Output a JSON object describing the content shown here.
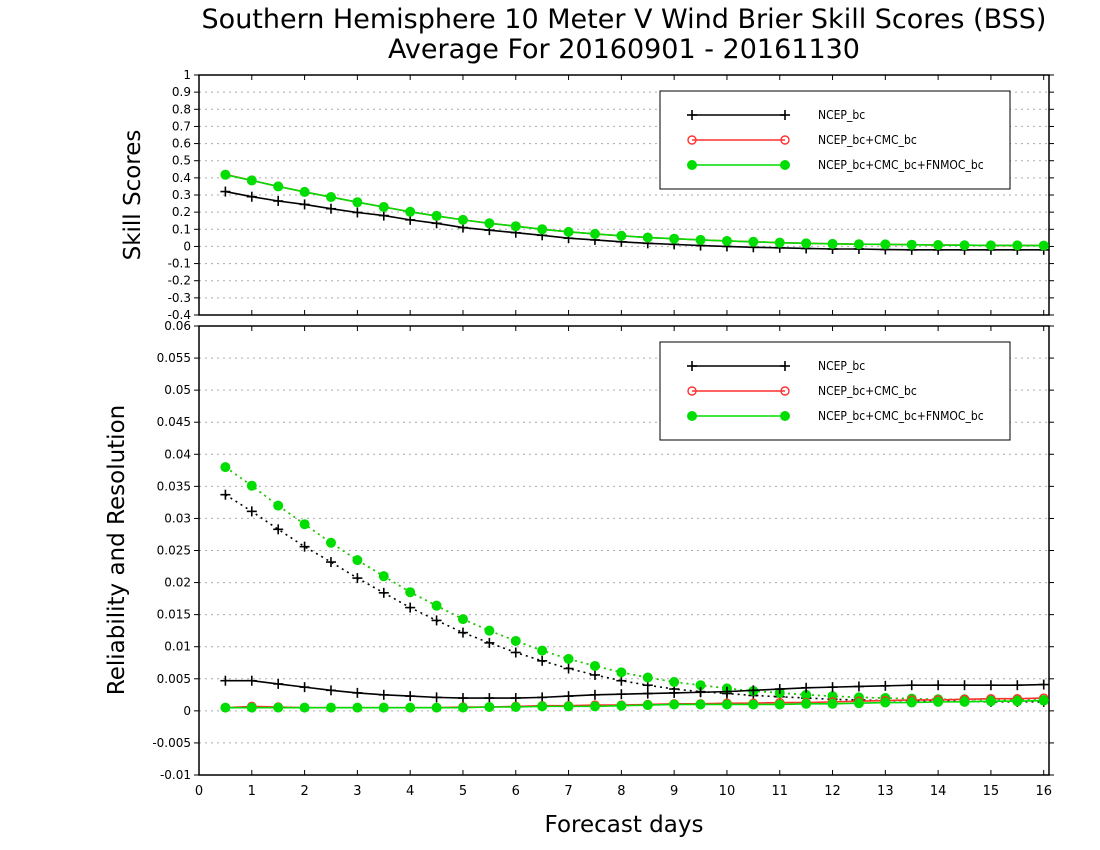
{
  "chart_data": {
    "title": "Southern Hemisphere 10 Meter V Wind Brier Skill Scores (BSS)",
    "subtitle": "Average For 20160901 - 20161130",
    "xlabel": "Forecast days",
    "x": [
      0.5,
      1,
      1.5,
      2,
      2.5,
      3,
      3.5,
      4,
      4.5,
      5,
      5.5,
      6,
      6.5,
      7,
      7.5,
      8,
      8.5,
      9,
      9.5,
      10,
      10.5,
      11,
      11.5,
      12,
      12.5,
      13,
      13.5,
      14,
      14.5,
      15,
      15.5,
      16
    ],
    "xlim": [
      0,
      16.1
    ],
    "xticks": [
      "0",
      "1",
      "2",
      "3",
      "4",
      "5",
      "6",
      "7",
      "8",
      "9",
      "10",
      "11",
      "12",
      "13",
      "14",
      "15",
      "16"
    ],
    "colors": {
      "NCEP_bc": "#000000",
      "NCEP_bc+CMC_bc": "#ff3030",
      "NCEP_bc+CMC_bc+FNMOC_bc": "#00dd00"
    },
    "panels": [
      {
        "type": "line",
        "ylabel": "Skill Scores",
        "ylim": [
          -0.4,
          1
        ],
        "yticks": [
          "-0.4",
          "-0.3",
          "-0.2",
          "-0.1",
          "0",
          "0.1",
          "0.2",
          "0.3",
          "0.4",
          "0.5",
          "0.6",
          "0.7",
          "0.8",
          "0.9",
          "1"
        ],
        "grid": true,
        "legend_position": "top-right",
        "legend": [
          {
            "name": "NCEP_bc",
            "marker": "plus"
          },
          {
            "name": "NCEP_bc+CMC_bc",
            "marker": "open-circle"
          },
          {
            "name": "NCEP_bc+CMC_bc+FNMOC_bc",
            "marker": "filled-circle"
          }
        ],
        "series": [
          {
            "name": "NCEP_bc",
            "marker": "plus",
            "dash": "solid",
            "values": [
              0.32,
              0.29,
              0.265,
              0.245,
              0.22,
              0.198,
              0.18,
              0.155,
              0.135,
              0.11,
              0.095,
              0.08,
              0.065,
              0.048,
              0.038,
              0.027,
              0.018,
              0.012,
              0.005,
              0.0,
              -0.005,
              -0.008,
              -0.012,
              -0.015,
              -0.015,
              -0.018,
              -0.02,
              -0.02,
              -0.02,
              -0.02,
              -0.02,
              -0.02
            ]
          },
          {
            "name": "NCEP_bc+CMC_bc",
            "marker": "open-circle",
            "dash": "solid",
            "values": [
              0.42,
              0.385,
              0.35,
              0.318,
              0.288,
              0.258,
              0.23,
              0.202,
              0.178,
              0.155,
              0.135,
              0.118,
              0.1,
              0.085,
              0.073,
              0.062,
              0.052,
              0.045,
              0.038,
              0.032,
              0.027,
              0.022,
              0.018,
              0.015,
              0.013,
              0.012,
              0.01,
              0.008,
              0.007,
              0.006,
              0.006,
              0.005
            ]
          },
          {
            "name": "NCEP_bc+CMC_bc+FNMOC_bc",
            "marker": "filled-circle",
            "dash": "solid",
            "values": [
              0.418,
              0.385,
              0.35,
              0.318,
              0.288,
              0.258,
              0.23,
              0.202,
              0.178,
              0.155,
              0.135,
              0.118,
              0.1,
              0.085,
              0.073,
              0.062,
              0.052,
              0.045,
              0.038,
              0.032,
              0.027,
              0.022,
              0.018,
              0.015,
              0.013,
              0.012,
              0.01,
              0.008,
              0.007,
              0.006,
              0.006,
              0.005
            ]
          }
        ]
      },
      {
        "type": "line",
        "ylabel": "Reliability and Resolution",
        "ylim": [
          -0.01,
          0.06
        ],
        "yticks": [
          "-0.01",
          "-0.005",
          "0",
          "0.005",
          "0.01",
          "0.015",
          "0.02",
          "0.025",
          "0.03",
          "0.035",
          "0.04",
          "0.045",
          "0.05",
          "0.055",
          "0.06"
        ],
        "grid": true,
        "legend_position": "top-right",
        "legend": [
          {
            "name": "NCEP_bc",
            "marker": "plus"
          },
          {
            "name": "NCEP_bc+CMC_bc",
            "marker": "open-circle"
          },
          {
            "name": "NCEP_bc+CMC_bc+FNMOC_bc",
            "marker": "filled-circle"
          }
        ],
        "series": [
          {
            "name": "NCEP_bc",
            "metric": "resolution",
            "marker": "plus",
            "dash": "dotted",
            "values": [
              0.0337,
              0.0311,
              0.0283,
              0.0256,
              0.0232,
              0.0207,
              0.0184,
              0.0161,
              0.0141,
              0.0122,
              0.0106,
              0.0091,
              0.0078,
              0.0066,
              0.0056,
              0.0047,
              0.004,
              0.0034,
              0.003,
              0.0027,
              0.0024,
              0.0022,
              0.002,
              0.0018,
              0.0017,
              0.0016,
              0.0016,
              0.0015,
              0.0015,
              0.0014,
              0.0014,
              0.0014
            ]
          },
          {
            "name": "NCEP_bc+CMC_bc",
            "metric": "resolution",
            "marker": "open-circle",
            "dash": "dotted",
            "values": [
              0.038,
              0.0351,
              0.032,
              0.0291,
              0.0262,
              0.0235,
              0.021,
              0.0185,
              0.0164,
              0.0143,
              0.0125,
              0.0109,
              0.0094,
              0.0081,
              0.007,
              0.006,
              0.0052,
              0.0045,
              0.004,
              0.0035,
              0.0031,
              0.0028,
              0.0025,
              0.0023,
              0.0021,
              0.002,
              0.0019,
              0.0018,
              0.0018,
              0.0017,
              0.0017,
              0.0017
            ]
          },
          {
            "name": "NCEP_bc+CMC_bc+FNMOC_bc",
            "metric": "resolution",
            "marker": "filled-circle",
            "dash": "dotted",
            "values": [
              0.038,
              0.0351,
              0.032,
              0.0291,
              0.0262,
              0.0235,
              0.021,
              0.0185,
              0.0164,
              0.0143,
              0.0125,
              0.0109,
              0.0094,
              0.0081,
              0.007,
              0.006,
              0.0052,
              0.0045,
              0.004,
              0.0035,
              0.0031,
              0.0028,
              0.0025,
              0.0023,
              0.0021,
              0.002,
              0.0019,
              0.0018,
              0.0018,
              0.0017,
              0.0017,
              0.0017
            ]
          },
          {
            "name": "NCEP_bc",
            "metric": "reliability",
            "marker": "plus",
            "dash": "solid",
            "values": [
              0.0047,
              0.0047,
              0.0042,
              0.0037,
              0.0032,
              0.0028,
              0.0025,
              0.0023,
              0.0021,
              0.002,
              0.002,
              0.002,
              0.0021,
              0.0023,
              0.0025,
              0.0026,
              0.0027,
              0.0028,
              0.0029,
              0.003,
              0.0032,
              0.0034,
              0.0036,
              0.0037,
              0.0038,
              0.0039,
              0.004,
              0.004,
              0.004,
              0.004,
              0.004,
              0.0041
            ]
          },
          {
            "name": "NCEP_bc+CMC_bc",
            "metric": "reliability",
            "marker": "open-circle",
            "dash": "solid",
            "values": [
              0.0005,
              0.0007,
              0.0006,
              0.0005,
              0.0005,
              0.0005,
              0.0005,
              0.0005,
              0.0005,
              0.0006,
              0.0006,
              0.0007,
              0.0008,
              0.0008,
              0.0009,
              0.0009,
              0.001,
              0.0011,
              0.0011,
              0.0012,
              0.0012,
              0.0013,
              0.0013,
              0.0014,
              0.0015,
              0.0016,
              0.0017,
              0.0017,
              0.0018,
              0.0019,
              0.0019,
              0.002
            ]
          },
          {
            "name": "NCEP_bc+CMC_bc+FNMOC_bc",
            "metric": "reliability",
            "marker": "filled-circle",
            "dash": "solid",
            "values": [
              0.0005,
              0.0005,
              0.0005,
              0.0005,
              0.0005,
              0.0005,
              0.0005,
              0.0005,
              0.0005,
              0.0005,
              0.0006,
              0.0006,
              0.0007,
              0.0007,
              0.0007,
              0.0008,
              0.0009,
              0.001,
              0.001,
              0.001,
              0.001,
              0.001,
              0.0011,
              0.0011,
              0.0012,
              0.0013,
              0.0013,
              0.0014,
              0.0014,
              0.0015,
              0.0015,
              0.0016
            ]
          }
        ]
      }
    ]
  }
}
